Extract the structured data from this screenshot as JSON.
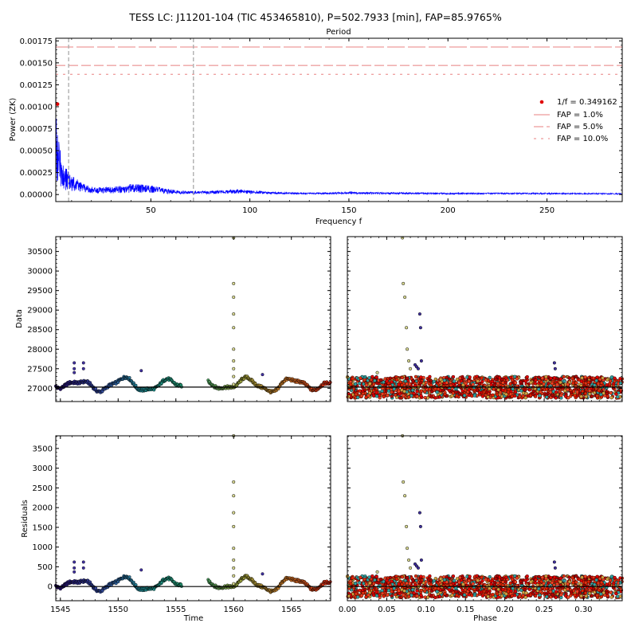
{
  "figure": {
    "title": "TESS LC: J11201-104 (TIC 453465810), P=502.7933 [min], FAP=85.9765%"
  },
  "chart_data": [
    {
      "id": "periodogram",
      "type": "line",
      "top_axis_label": "Period",
      "xlabel": "Frequency f",
      "ylabel": "Power (ZK)",
      "xlim": [
        2,
        288
      ],
      "ylim": [
        -8e-05,
        0.00178
      ],
      "xticks": [
        50,
        100,
        150,
        200,
        250
      ],
      "yticks": [
        0.0,
        0.00025,
        0.0005,
        0.00075,
        0.001,
        0.00125,
        0.0015,
        0.00175
      ],
      "ytick_labels": [
        "0.00000",
        "0.00025",
        "0.00050",
        "0.00075",
        "0.00100",
        "0.00125",
        "0.00150",
        "0.00175"
      ],
      "series_color": "#0000ff",
      "envelope": [
        [
          2,
          0.00103
        ],
        [
          3,
          0.00075
        ],
        [
          4,
          0.00055
        ],
        [
          5,
          0.00042
        ],
        [
          6,
          0.00035
        ],
        [
          8,
          0.00028
        ],
        [
          10,
          0.00022
        ],
        [
          13,
          0.00017
        ],
        [
          17,
          0.00011
        ],
        [
          22,
          8e-05
        ],
        [
          30,
          9e-05
        ],
        [
          40,
          0.00012
        ],
        [
          50,
          0.00011
        ],
        [
          58,
          7e-05
        ],
        [
          65,
          4e-05
        ],
        [
          80,
          4e-05
        ],
        [
          95,
          6e-05
        ],
        [
          110,
          3e-05
        ],
        [
          130,
          2e-05
        ],
        [
          150,
          3e-05
        ],
        [
          170,
          2.5e-05
        ],
        [
          200,
          2e-05
        ],
        [
          240,
          2e-05
        ],
        [
          288,
          1.5e-05
        ]
      ],
      "peak": {
        "frequency": 2.86,
        "power": 0.00103,
        "color": "#e00000"
      },
      "fap_levels": [
        {
          "label": "FAP = 1.0%",
          "power": 0.00168,
          "dash": "long"
        },
        {
          "label": "FAP = 5.0%",
          "power": 0.00147,
          "dash": "medium"
        },
        {
          "label": "FAP = 10.0%",
          "power": 0.00137,
          "dash": "short"
        }
      ],
      "vertical_markers": [
        8.5,
        71.5
      ],
      "legend": {
        "placement": "center-right",
        "entries": [
          "1/f = 0.349162",
          "FAP = 1.0%",
          "FAP = 5.0%",
          "FAP = 10.0%"
        ]
      }
    },
    {
      "id": "data-vs-time",
      "type": "scatter",
      "ylabel": "Data",
      "xlim": [
        1544.6,
        1568.4
      ],
      "ylim": [
        26660,
        30880
      ],
      "yticks": [
        27000,
        27500,
        28000,
        28500,
        29000,
        29500,
        30000,
        30500
      ],
      "baseline": 27030,
      "segments": [
        [
          1544.6,
          1555.5
        ],
        [
          1557.8,
          1568.4
        ]
      ],
      "flare": {
        "time": 1560.0,
        "values": [
          27100,
          27300,
          27500,
          27700,
          28000,
          28550,
          28900,
          29330,
          29680,
          30850
        ]
      },
      "extra_points": [
        [
          1546.2,
          27650
        ],
        [
          1546.2,
          27500
        ],
        [
          1546.2,
          27400
        ],
        [
          1547.0,
          27650
        ],
        [
          1547.0,
          27500
        ],
        [
          1552.0,
          27450
        ],
        [
          1562.5,
          27350
        ]
      ]
    },
    {
      "id": "data-vs-phase",
      "type": "scatter",
      "xlim": [
        0.0,
        0.349162
      ],
      "ylim": [
        26660,
        30880
      ],
      "baseline": 27030,
      "band": [
        26750,
        27300
      ],
      "outliers": [
        [
          0.07,
          30850
        ],
        [
          0.071,
          29680
        ],
        [
          0.073,
          29330
        ],
        [
          0.075,
          28550
        ],
        [
          0.076,
          28000
        ],
        [
          0.078,
          27700
        ],
        [
          0.08,
          27500
        ],
        [
          0.092,
          28900
        ],
        [
          0.093,
          28550
        ],
        [
          0.094,
          27700
        ],
        [
          0.088,
          27550
        ],
        [
          0.09,
          27500
        ],
        [
          0.086,
          27600
        ],
        [
          0.038,
          27400
        ],
        [
          0.263,
          27650
        ],
        [
          0.264,
          27500
        ]
      ]
    },
    {
      "id": "residuals-vs-time",
      "type": "scatter",
      "xlabel": "Time",
      "ylabel": "Residuals",
      "xlim": [
        1544.6,
        1568.4
      ],
      "ylim": [
        -360,
        3820
      ],
      "xticks": [
        1545,
        1550,
        1555,
        1560,
        1565
      ],
      "yticks": [
        0,
        500,
        1000,
        1500,
        2000,
        2500,
        3000,
        3500
      ],
      "baseline": 0
    },
    {
      "id": "residuals-vs-phase",
      "type": "scatter",
      "xlabel": "Phase",
      "xlim": [
        0.0,
        0.349162
      ],
      "ylim": [
        -360,
        3820
      ],
      "xticks": [
        0.0,
        0.05,
        0.1,
        0.15,
        0.2,
        0.25,
        0.3
      ],
      "xtick_labels": [
        "0.00",
        "0.05",
        "0.10",
        "0.15",
        "0.20",
        "0.25",
        "0.30"
      ],
      "baseline": 0
    }
  ]
}
